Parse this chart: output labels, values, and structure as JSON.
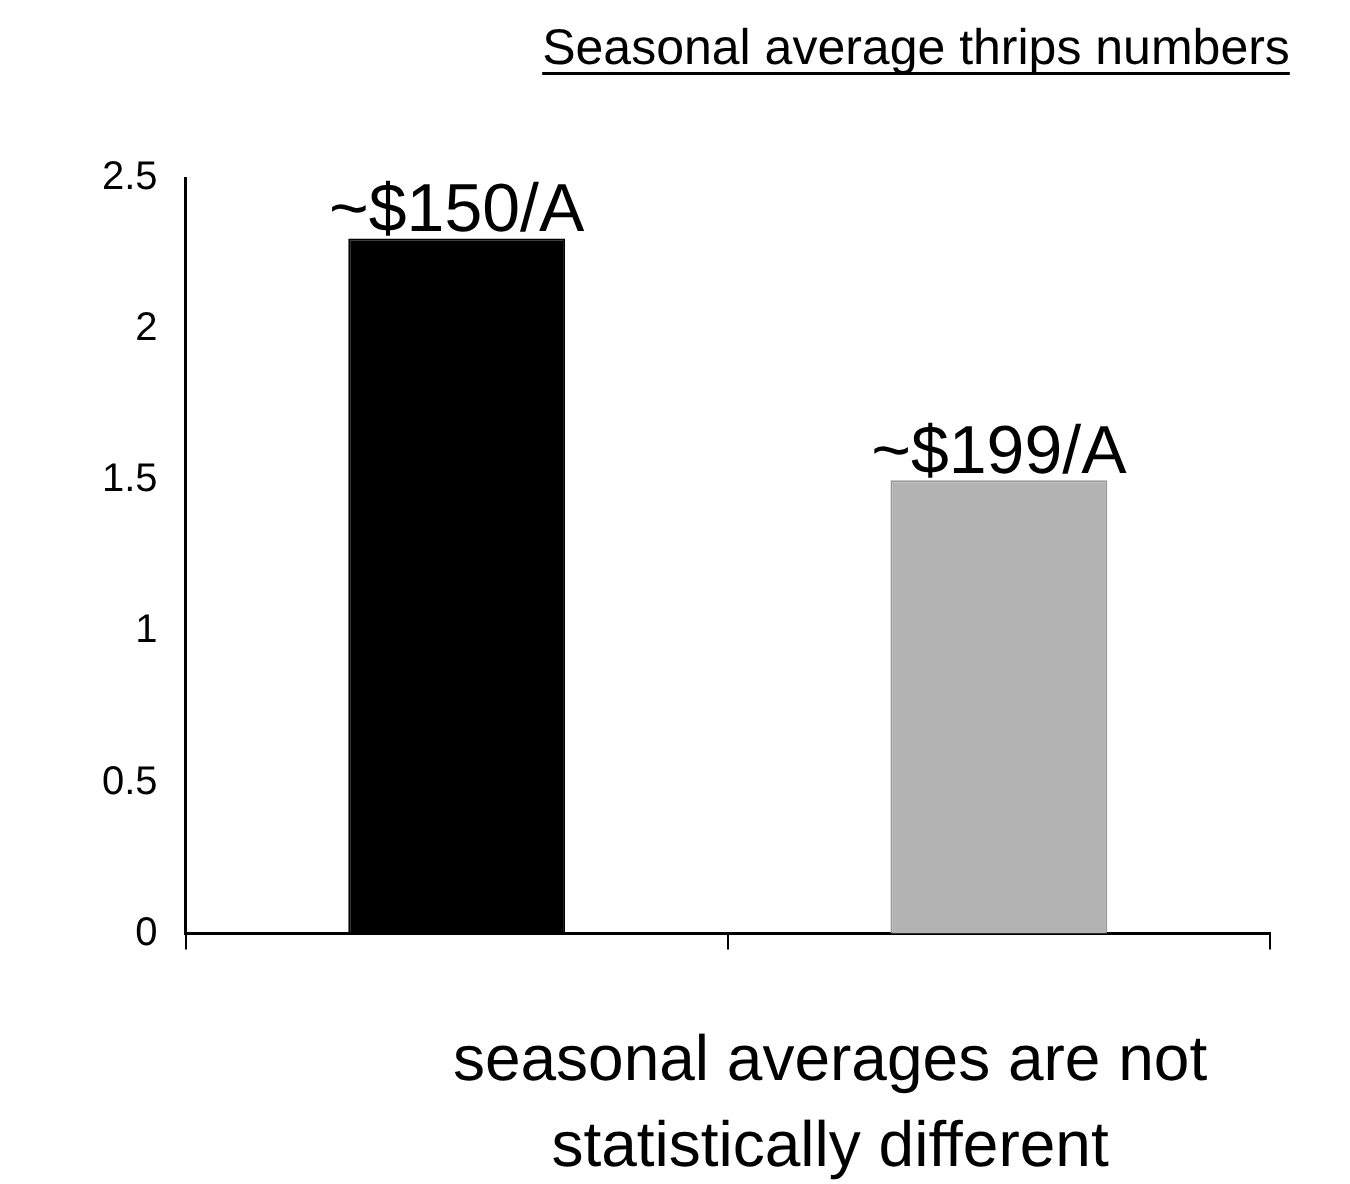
{
  "chart_data": {
    "type": "bar",
    "title": "Seasonal average thrips numbers",
    "categories": [
      null,
      null
    ],
    "values": [
      2.3,
      1.5
    ],
    "colors": [
      "#000000",
      "#b3b3b3"
    ],
    "ylim": [
      0,
      2.5
    ],
    "yticks": [
      0,
      0.5,
      1,
      1.5,
      2,
      2.5
    ],
    "annotations": [
      {
        "text": "~$150/A",
        "y": 2.3
      },
      {
        "text": "~$199/A",
        "y": 1.5
      },
      "seasonal averages are not statistically different"
    ]
  }
}
